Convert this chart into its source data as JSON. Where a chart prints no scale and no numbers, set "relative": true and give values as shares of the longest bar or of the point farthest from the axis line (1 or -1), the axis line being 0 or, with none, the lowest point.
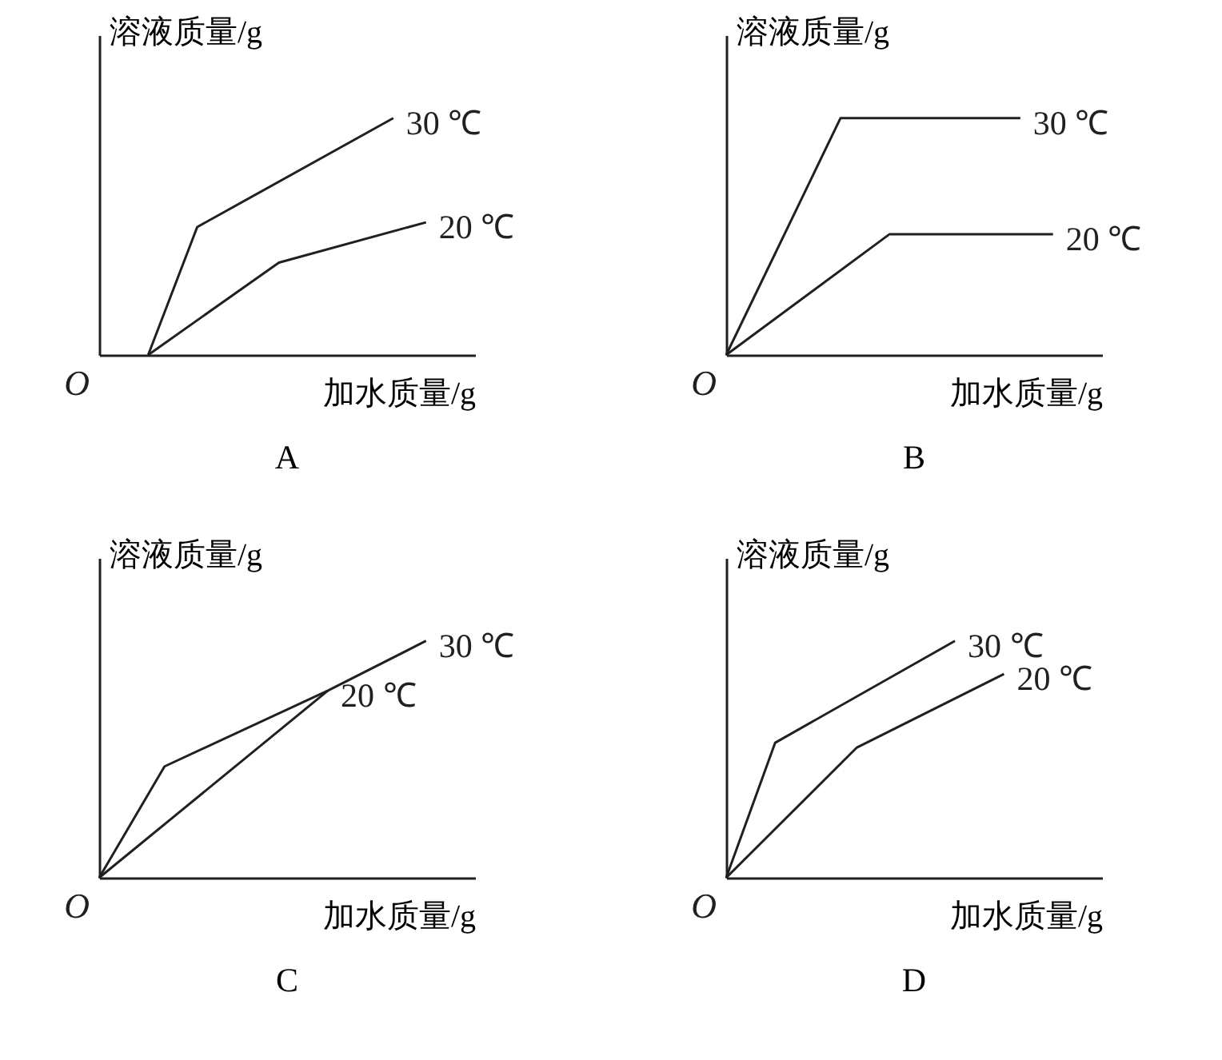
{
  "chart_data": [
    {
      "type": "line",
      "title": "A",
      "xlabel": "加水质量/g",
      "ylabel": "溶液质量/g",
      "relative": true,
      "annotations": [
        "O"
      ],
      "categories": [
        null,
        null,
        null,
        null,
        null,
        null,
        null,
        null,
        null,
        null,
        null,
        null,
        null,
        null,
        null,
        null,
        null,
        null,
        null,
        null,
        null,
        null,
        null,
        null
      ],
      "series": [
        {
          "name": "30 ℃",
          "color": "#231f20",
          "values": [
            null,
            null,
            null,
            0,
            null,
            null,
            0.54,
            null,
            null,
            null,
            null,
            null,
            null,
            null,
            null,
            null,
            null,
            null,
            1,
            null,
            null,
            null,
            null,
            null
          ]
        },
        {
          "name": "20 ℃",
          "color": "#231f20",
          "values": [
            null,
            null,
            null,
            0,
            null,
            null,
            null,
            null,
            null,
            null,
            null,
            0.39,
            null,
            null,
            null,
            null,
            null,
            null,
            null,
            null,
            0.56,
            null,
            null,
            null
          ]
        }
      ]
    },
    {
      "type": "line",
      "title": "B",
      "xlabel": "加水质量/g",
      "ylabel": "溶液质量/g",
      "relative": true,
      "annotations": [
        "O"
      ],
      "categories": [
        null,
        null,
        null,
        null,
        null,
        null,
        null,
        null,
        null,
        null,
        null,
        null,
        null,
        null,
        null,
        null,
        null,
        null,
        null,
        null,
        null,
        null,
        null,
        null
      ],
      "series": [
        {
          "name": "30 ℃",
          "color": "#231f20",
          "values": [
            0,
            null,
            null,
            null,
            null,
            null,
            null,
            1,
            null,
            null,
            null,
            null,
            null,
            null,
            null,
            null,
            null,
            null,
            1,
            null,
            null,
            null,
            null,
            null
          ]
        },
        {
          "name": "20 ℃",
          "color": "#231f20",
          "values": [
            0,
            null,
            null,
            null,
            null,
            null,
            null,
            null,
            null,
            null,
            0.51,
            null,
            null,
            null,
            null,
            null,
            null,
            null,
            null,
            null,
            0.51,
            null,
            null,
            null
          ]
        }
      ]
    },
    {
      "type": "line",
      "title": "C",
      "xlabel": "加水质量/g",
      "ylabel": "溶液质量/g",
      "relative": true,
      "annotations": [
        "O"
      ],
      "categories": [
        null,
        null,
        null,
        null,
        null,
        null,
        null,
        null,
        null,
        null,
        null,
        null,
        null,
        null,
        null,
        null,
        null,
        null,
        null,
        null,
        null,
        null,
        null,
        null
      ],
      "series": [
        {
          "name": "30 ℃",
          "color": "#231f20",
          "values": [
            0,
            null,
            null,
            null,
            0.47,
            null,
            null,
            null,
            null,
            null,
            null,
            null,
            null,
            null,
            0.79,
            null,
            null,
            null,
            null,
            null,
            1,
            null,
            null,
            null
          ]
        },
        {
          "name": "20 ℃",
          "color": "#231f20",
          "values": [
            0,
            null,
            null,
            null,
            null,
            null,
            null,
            null,
            null,
            null,
            null,
            null,
            null,
            null,
            0.79,
            null,
            null,
            null,
            null,
            null,
            null,
            null,
            null,
            null
          ]
        }
      ]
    },
    {
      "type": "line",
      "title": "D",
      "xlabel": "加水质量/g",
      "ylabel": "溶液质量/g",
      "relative": true,
      "annotations": [
        "O"
      ],
      "categories": [
        null,
        null,
        null,
        null,
        null,
        null,
        null,
        null,
        null,
        null,
        null,
        null,
        null,
        null,
        null,
        null,
        null,
        null,
        null,
        null,
        null,
        null,
        null,
        null
      ],
      "series": [
        {
          "name": "30 ℃",
          "color": "#231f20",
          "values": [
            0,
            null,
            null,
            0.57,
            null,
            null,
            null,
            null,
            null,
            null,
            null,
            null,
            null,
            null,
            1,
            null,
            null,
            null,
            null,
            null,
            null,
            null,
            null,
            null
          ]
        },
        {
          "name": "20 ℃",
          "color": "#231f20",
          "values": [
            0,
            null,
            null,
            null,
            null,
            null,
            null,
            null,
            0.55,
            null,
            null,
            null,
            null,
            null,
            null,
            null,
            null,
            0.86,
            null,
            null,
            null,
            null,
            null,
            null
          ]
        }
      ]
    }
  ]
}
